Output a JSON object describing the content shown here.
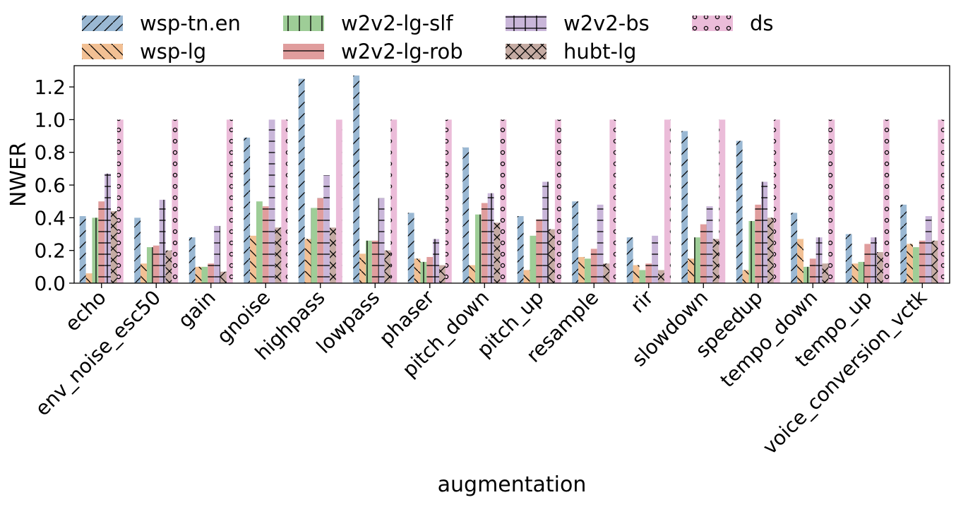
{
  "chart_data": {
    "type": "bar",
    "xlabel": "augmentation",
    "ylabel": "NWER",
    "ylim": [
      0,
      1.33
    ],
    "yticks": [
      "0.0",
      "0.2",
      "0.4",
      "0.6",
      "0.8",
      "1.0",
      "1.2"
    ],
    "legend_position": "top",
    "categories": [
      "echo",
      "env_noise_esc50",
      "gain",
      "gnoise",
      "highpass",
      "lowpass",
      "phaser",
      "pitch_down",
      "pitch_up",
      "resample",
      "rir",
      "slowdown",
      "speedup",
      "tempo_down",
      "tempo_up",
      "voice_conversion_vctk"
    ],
    "series": [
      {
        "name": "wsp-tn.en",
        "color": "#9ab8d3",
        "hatch": "slash",
        "values": [
          0.41,
          0.4,
          0.28,
          0.89,
          1.25,
          1.27,
          0.43,
          0.83,
          0.41,
          0.5,
          0.28,
          0.93,
          0.87,
          0.43,
          0.3,
          0.48
        ]
      },
      {
        "name": "wsp-lg",
        "color": "#f2c094",
        "hatch": "backslash",
        "values": [
          0.06,
          0.12,
          0.1,
          0.29,
          0.27,
          0.18,
          0.15,
          0.11,
          0.08,
          0.16,
          0.11,
          0.15,
          0.08,
          0.27,
          0.12,
          0.24
        ]
      },
      {
        "name": "w2v2-lg-slf",
        "color": "#9ecd97",
        "hatch": "vertical",
        "values": [
          0.4,
          0.22,
          0.1,
          0.5,
          0.46,
          0.26,
          0.13,
          0.42,
          0.29,
          0.15,
          0.08,
          0.28,
          0.38,
          0.1,
          0.13,
          0.22
        ]
      },
      {
        "name": "w2v2-lg-rob",
        "color": "#e09d9d",
        "hatch": "horizontal",
        "values": [
          0.5,
          0.23,
          0.12,
          0.47,
          0.52,
          0.26,
          0.16,
          0.49,
          0.39,
          0.21,
          0.12,
          0.36,
          0.48,
          0.15,
          0.24,
          0.26
        ]
      },
      {
        "name": "w2v2-bs",
        "color": "#c9b6d9",
        "hatch": "plus",
        "values": [
          0.67,
          0.51,
          0.35,
          1.0,
          0.66,
          0.52,
          0.27,
          0.55,
          0.62,
          0.48,
          0.29,
          0.47,
          0.62,
          0.28,
          0.28,
          0.41
        ]
      },
      {
        "name": "hubt-lg",
        "color": "#c5aba3",
        "hatch": "cross",
        "values": [
          0.44,
          0.2,
          0.07,
          0.34,
          0.34,
          0.2,
          0.11,
          0.37,
          0.33,
          0.12,
          0.08,
          0.27,
          0.4,
          0.12,
          0.19,
          0.26
        ]
      },
      {
        "name": "ds",
        "color": "#ebbcd9",
        "hatch": "circle",
        "values": [
          1.0,
          1.0,
          1.0,
          1.0,
          1.0,
          1.0,
          1.0,
          1.0,
          1.0,
          1.0,
          1.0,
          1.0,
          1.0,
          1.0,
          1.0,
          1.0
        ]
      }
    ]
  }
}
